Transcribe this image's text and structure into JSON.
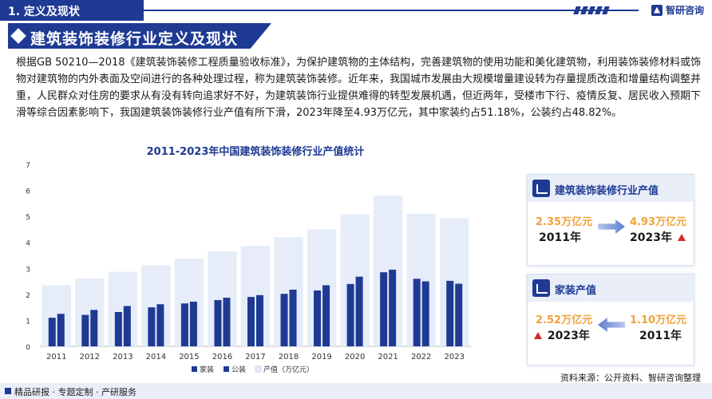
{
  "header": {
    "section_title": "1. 定义及现状",
    "brand_name": "智研咨询"
  },
  "banner": {
    "title": "建筑装饰装修行业定义及现状"
  },
  "intro": {
    "text": "根据GB 50210—2018《建筑装饰装修工程质量验收标准》，为保护建筑物的主体结构，完善建筑物的使用功能和美化建筑物，利用装饰装修材料或饰物对建筑物的内外表面及空间进行的各种处理过程，称为建筑装饰装修。近年来，我国城市发展由大规模增量建设转为存量提质改造和增量结构调整并重，人民群众对住房的要求从有没有转向追求好不好，为建筑装饰行业提供难得的转型发展机遇，但近两年，受楼市下行、疫情反复、居民收入预期下滑等综合因素影响下，我国建筑装饰装修行业产值有所下滑，2023年降至4.93万亿元，其中家装约占51.18%，公装约占48.82%。"
  },
  "chart_data": {
    "type": "bar",
    "title": "2011-2023年中国建筑装饰装修行业产值统计",
    "categories": [
      "2011",
      "2012",
      "2013",
      "2014",
      "2015",
      "2016",
      "2017",
      "2018",
      "2019",
      "2020",
      "2021",
      "2022",
      "2023"
    ],
    "series": [
      {
        "name": "家装",
        "values": [
          1.1,
          1.21,
          1.32,
          1.5,
          1.65,
          1.78,
          1.9,
          2.02,
          2.15,
          2.4,
          2.85,
          2.6,
          2.52
        ],
        "color": "#1f3a93"
      },
      {
        "name": "公装",
        "values": [
          1.25,
          1.4,
          1.55,
          1.62,
          1.72,
          1.87,
          1.97,
          2.18,
          2.35,
          2.68,
          2.95,
          2.5,
          2.41
        ],
        "color": "#1f3a93"
      },
      {
        "name": "产值（万亿元）",
        "values": [
          2.35,
          2.61,
          2.87,
          3.12,
          3.37,
          3.65,
          3.87,
          4.2,
          4.5,
          5.08,
          5.8,
          5.1,
          4.93
        ],
        "color": "#e6edf9"
      }
    ],
    "yticks": [
      "0",
      "1",
      "2",
      "3",
      "4",
      "5",
      "6",
      "7"
    ],
    "ylim": [
      0,
      7
    ],
    "legend": "bottom",
    "grid": false
  },
  "cards": {
    "industry": {
      "title": "建筑装饰装修行业产值",
      "from_value": "2.35万亿元",
      "from_year": "2011年",
      "to_value": "4.93万亿元",
      "to_year": "2023年"
    },
    "home": {
      "title": "家装产值",
      "left_value": "2.52万亿元",
      "left_year": "2023年",
      "right_value": "1.10万亿元",
      "right_year": "2011年"
    }
  },
  "source": "资料来源：公开资料、智研咨询整理",
  "footer": {
    "text": "精品研报 · 专题定制 · 产研服务"
  }
}
